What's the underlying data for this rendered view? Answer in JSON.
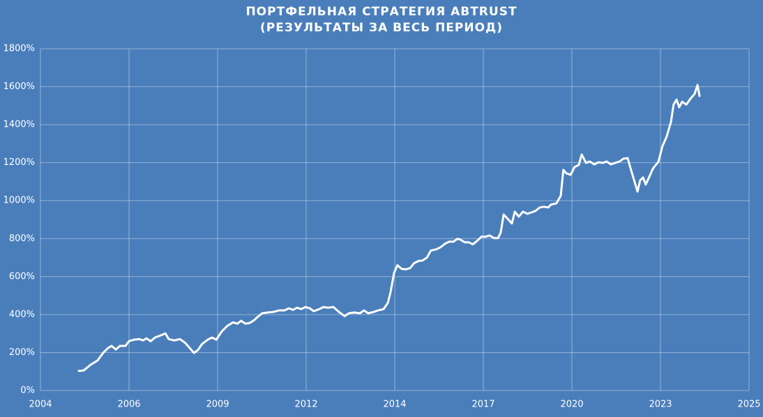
{
  "chart_data": {
    "type": "line",
    "title": [
      "ПОРТФЕЛЬНАЯ СТРАТЕГИЯ ABTRUST",
      "(РЕЗУЛЬТАТЫ ЗА ВЕСЬ ПЕРИОД)"
    ],
    "x": [
      2005.32,
      2005.47,
      2005.68,
      2005.89,
      2006.06,
      2006.21,
      2006.32,
      2006.45,
      2006.57,
      2006.74,
      2006.85,
      2007.0,
      2007.17,
      2007.28,
      2007.38,
      2007.51,
      2007.64,
      2007.81,
      2007.96,
      2008.06,
      2008.23,
      2008.4,
      2008.55,
      2008.7,
      2008.83,
      2008.95,
      2009.08,
      2009.25,
      2009.38,
      2009.51,
      2009.68,
      2009.85,
      2010.02,
      2010.15,
      2010.27,
      2010.4,
      2010.53,
      2010.66,
      2010.78,
      2010.91,
      2011.08,
      2011.25,
      2011.42,
      2011.59,
      2011.72,
      2011.85,
      2011.97,
      2012.1,
      2012.23,
      2012.36,
      2012.48,
      2012.65,
      2012.78,
      2012.91,
      2013.08,
      2013.25,
      2013.42,
      2013.55,
      2013.72,
      2013.89,
      2014.01,
      2014.14,
      2014.31,
      2014.44,
      2014.61,
      2014.74,
      2014.82,
      2014.93,
      2015.03,
      2015.16,
      2015.29,
      2015.42,
      2015.54,
      2015.67,
      2015.8,
      2015.93,
      2016.05,
      2016.22,
      2016.35,
      2016.48,
      2016.61,
      2016.74,
      2016.86,
      2016.95,
      2017.08,
      2017.2,
      2017.33,
      2017.46,
      2017.59,
      2017.71,
      2017.84,
      2017.97,
      2018.1,
      2018.18,
      2018.27,
      2018.39,
      2018.52,
      2018.61,
      2018.73,
      2018.86,
      2018.99,
      2019.12,
      2019.24,
      2019.37,
      2019.5,
      2019.63,
      2019.71,
      2019.88,
      2020.01,
      2020.09,
      2020.18,
      2020.31,
      2020.43,
      2020.56,
      2020.65,
      2020.78,
      2020.9,
      2021.03,
      2021.16,
      2021.29,
      2021.41,
      2021.54,
      2021.67,
      2021.8,
      2021.92,
      2022.05,
      2022.14,
      2022.26,
      2022.35,
      2022.43,
      2022.52,
      2022.6,
      2022.69,
      2022.82,
      2022.99,
      2023.11,
      2023.24,
      2023.37,
      2023.45,
      2023.54,
      2023.62,
      2023.71,
      2023.84,
      2023.96,
      2024.09,
      2024.18,
      2024.24
    ],
    "series": [
      {
        "color": "#ffffff",
        "values": [
          103,
          106,
          136,
          158,
          198,
          224,
          235,
          216,
          235,
          235,
          260,
          268,
          271,
          264,
          275,
          260,
          279,
          290,
          301,
          271,
          264,
          271,
          253,
          224,
          198,
          213,
          246,
          268,
          279,
          268,
          312,
          341,
          359,
          352,
          367,
          352,
          356,
          370,
          389,
          407,
          411,
          414,
          422,
          422,
          433,
          425,
          436,
          429,
          440,
          433,
          418,
          429,
          440,
          436,
          440,
          414,
          392,
          407,
          411,
          407,
          422,
          407,
          414,
          422,
          429,
          462,
          517,
          620,
          660,
          641,
          638,
          645,
          671,
          682,
          685,
          700,
          737,
          744,
          755,
          773,
          784,
          784,
          799,
          795,
          781,
          781,
          770,
          788,
          810,
          810,
          817,
          803,
          803,
          832,
          927,
          905,
          880,
          942,
          916,
          942,
          931,
          938,
          946,
          964,
          968,
          964,
          979,
          986,
          1026,
          1162,
          1144,
          1136,
          1177,
          1188,
          1243,
          1199,
          1206,
          1191,
          1202,
          1199,
          1206,
          1191,
          1199,
          1206,
          1221,
          1224,
          1169,
          1100,
          1048,
          1107,
          1122,
          1085,
          1118,
          1169,
          1206,
          1287,
          1338,
          1415,
          1506,
          1532,
          1492,
          1521,
          1506,
          1536,
          1562,
          1609,
          1551
        ]
      }
    ],
    "xlim": [
      2004.15,
      2025.75
    ],
    "xticks": [
      {
        "value": 2004.15,
        "label": "2004"
      },
      {
        "value": 2006.85,
        "label": "2006"
      },
      {
        "value": 2009.55,
        "label": "2009"
      },
      {
        "value": 2012.25,
        "label": "2012"
      },
      {
        "value": 2014.95,
        "label": "2014"
      },
      {
        "value": 2017.65,
        "label": "2017"
      },
      {
        "value": 2020.35,
        "label": "2020"
      },
      {
        "value": 2023.05,
        "label": "2023"
      },
      {
        "value": 2025.75,
        "label": "2025"
      }
    ],
    "ylim": [
      0,
      1800
    ],
    "yticks": [
      {
        "value": 0,
        "label": "0%"
      },
      {
        "value": 200,
        "label": "200%"
      },
      {
        "value": 400,
        "label": "400%"
      },
      {
        "value": 600,
        "label": "600%"
      },
      {
        "value": 800,
        "label": "800%"
      },
      {
        "value": 1000,
        "label": "1000%"
      },
      {
        "value": 1200,
        "label": "1200%"
      },
      {
        "value": 1400,
        "label": "1400%"
      },
      {
        "value": 1600,
        "label": "1600%"
      },
      {
        "value": 1800,
        "label": "1800%"
      }
    ],
    "grid": true
  }
}
